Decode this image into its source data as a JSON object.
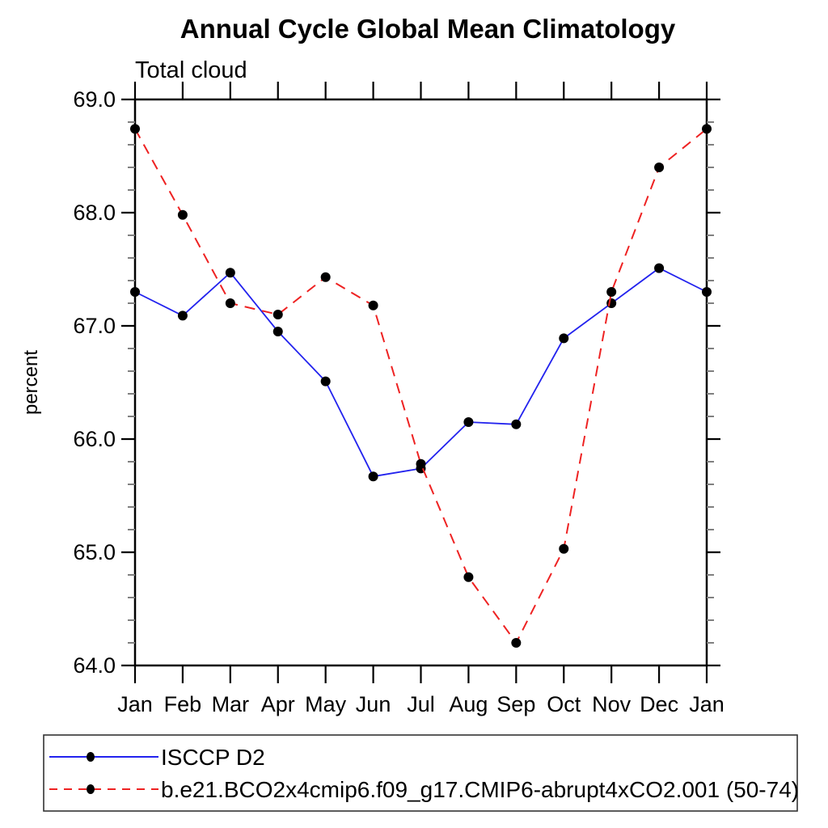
{
  "chart_data": {
    "type": "line",
    "title": "Annual Cycle Global Mean Climatology",
    "subtitle": "Total cloud",
    "xlabel": "",
    "ylabel": "percent",
    "categories": [
      "Jan",
      "Feb",
      "Mar",
      "Apr",
      "May",
      "Jun",
      "Jul",
      "Aug",
      "Sep",
      "Oct",
      "Nov",
      "Dec",
      "Jan"
    ],
    "series": [
      {
        "name": "ISCCP D2",
        "color": "#2222ee",
        "line_style": "solid",
        "marker": "filled-circle",
        "values": [
          67.3,
          67.09,
          67.47,
          66.95,
          66.51,
          65.67,
          65.74,
          66.15,
          66.13,
          66.89,
          67.2,
          67.51,
          67.3
        ]
      },
      {
        "name": "b.e21.BCO2x4cmip6.f09_g17.CMIP6-abrupt4xCO2.001 (50-74)",
        "color": "#ee2222",
        "line_style": "dashed",
        "marker": "filled-circle",
        "values": [
          68.74,
          67.98,
          67.2,
          67.1,
          67.43,
          67.18,
          65.78,
          64.78,
          64.2,
          65.03,
          67.3,
          68.4,
          68.74
        ]
      }
    ],
    "ylim": [
      64.0,
      69.0
    ],
    "y_major_step": 1.0,
    "y_minor_step": 0.2,
    "y_tick_labels": [
      "64.0",
      "65.0",
      "66.0",
      "67.0",
      "68.0",
      "69.0"
    ],
    "grid": false,
    "legend_position": "bottom-left-box",
    "marker_color": "#000000",
    "axis_color": "#000000",
    "minor_tick_color": "#808080"
  }
}
